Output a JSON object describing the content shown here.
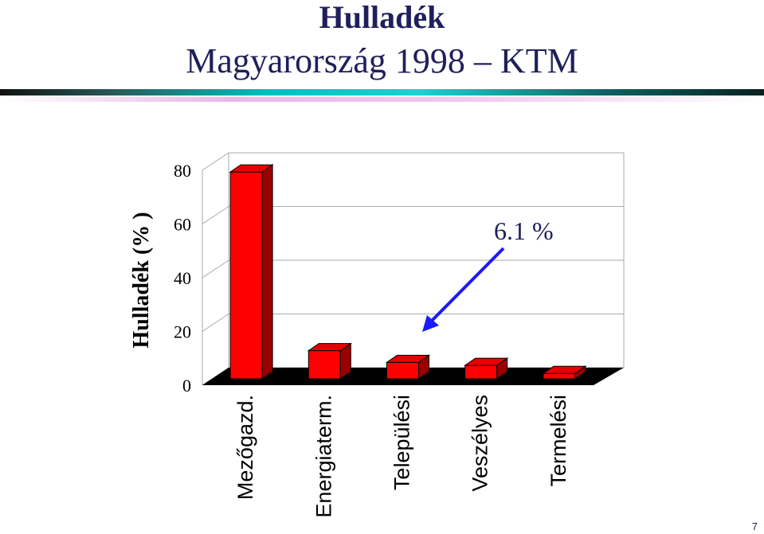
{
  "slide": {
    "title": "Hulladék",
    "subtitle": "Magyarország 1998 – KTM",
    "page_number": "7"
  },
  "colors": {
    "title": "#1f1f5c",
    "bar_front": "#ff0000",
    "bar_top": "#e60000",
    "bar_side": "#990000",
    "floor": "#000000",
    "arrow": "#1a1aff"
  },
  "chart_data": {
    "type": "bar",
    "three_d": true,
    "ylabel": "Hulladék (% )",
    "ylim": [
      0,
      80
    ],
    "yticks": [
      0,
      20,
      40,
      60,
      80
    ],
    "grid": true,
    "categories": [
      "Mezőgazd.",
      "Energiaterm.",
      "Települési",
      "Veszélyes",
      "Termelési"
    ],
    "values": [
      77,
      10.5,
      6.1,
      5,
      2
    ],
    "annotations": [
      {
        "text": "6.1 %",
        "target_category": "Települési"
      }
    ]
  }
}
